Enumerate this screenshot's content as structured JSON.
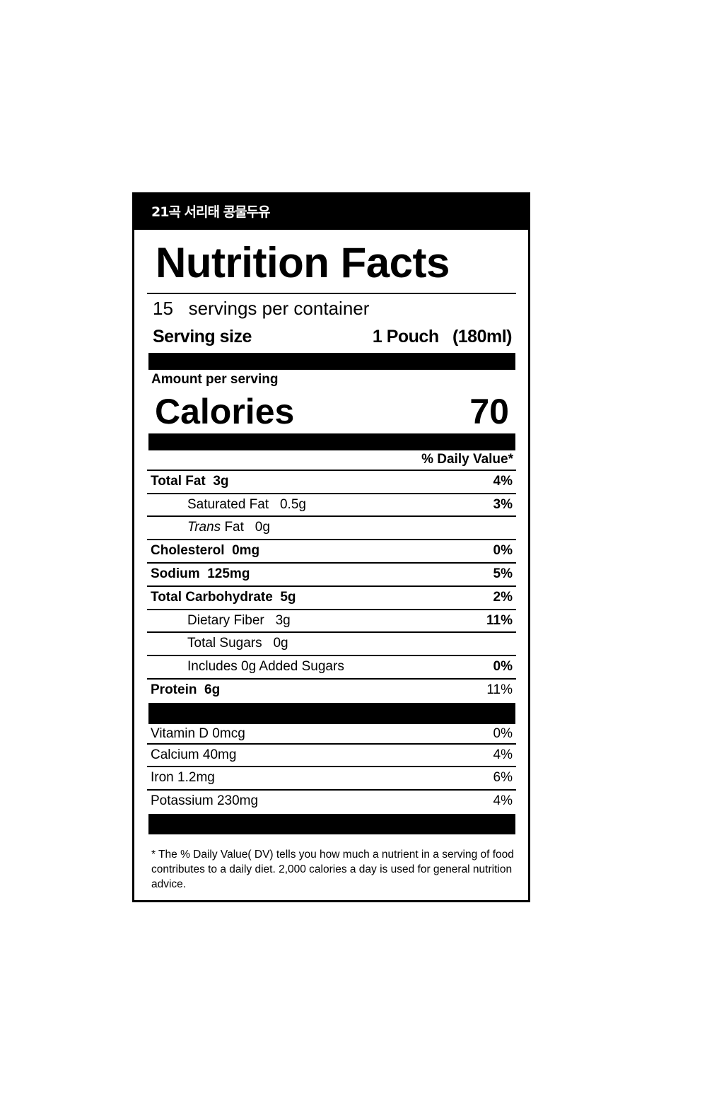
{
  "product_name": "21곡 서리태 콩물두유",
  "title": "Nutrition Facts",
  "servings": {
    "count": "15",
    "label": "servings per container"
  },
  "serving_size": {
    "label": "Serving size",
    "amount": "1 Pouch",
    "volume": "(180ml)"
  },
  "amount_per_serving": "Amount per serving",
  "calories": {
    "label": "Calories",
    "value": "70"
  },
  "dv_header": "% Daily Value*",
  "nutrients": [
    {
      "name": "Total Fat",
      "amount": "3g",
      "dv": "4%",
      "bold": true,
      "indent": false
    },
    {
      "name": "Saturated Fat",
      "amount": "0.5g",
      "dv": "3%",
      "bold": false,
      "indent": true
    },
    {
      "name_italic": "Trans",
      "name": "Fat",
      "amount": "0g",
      "dv": "",
      "bold": false,
      "indent": true
    },
    {
      "name": "Cholesterol",
      "amount": "0mg",
      "dv": "0%",
      "bold": true,
      "indent": false
    },
    {
      "name": "Sodium",
      "amount": "125mg",
      "dv": "5%",
      "bold": true,
      "indent": false
    },
    {
      "name": "Total Carbohydrate",
      "amount": "5g",
      "dv": "2%",
      "bold": true,
      "indent": false
    },
    {
      "name": "Dietary Fiber",
      "amount": "3g",
      "dv": "11%",
      "bold": false,
      "indent": true
    },
    {
      "name": "Total Sugars",
      "amount": "0g",
      "dv": "",
      "bold": false,
      "indent": true
    },
    {
      "name": "Includes 0g Added Sugars",
      "amount": "",
      "dv": "0%",
      "bold": false,
      "indent": true
    },
    {
      "name": "Protein",
      "amount": "6g",
      "dv": "11%",
      "bold": true,
      "indent": false
    }
  ],
  "vitamins": [
    {
      "name": "Vitamin D",
      "amount": "0mcg",
      "dv": "0%"
    },
    {
      "name": "Calcium",
      "amount": "40mg",
      "dv": "4%"
    },
    {
      "name": "Iron",
      "amount": "1.2mg",
      "dv": "6%"
    },
    {
      "name": "Potassium",
      "amount": "230mg",
      "dv": "4%"
    }
  ],
  "footnote": "* The % Daily Value( DV) tells you how much a nutrient in a serving of food contributes to a daily diet. 2,000 calories a day is used for general nutrition advice."
}
